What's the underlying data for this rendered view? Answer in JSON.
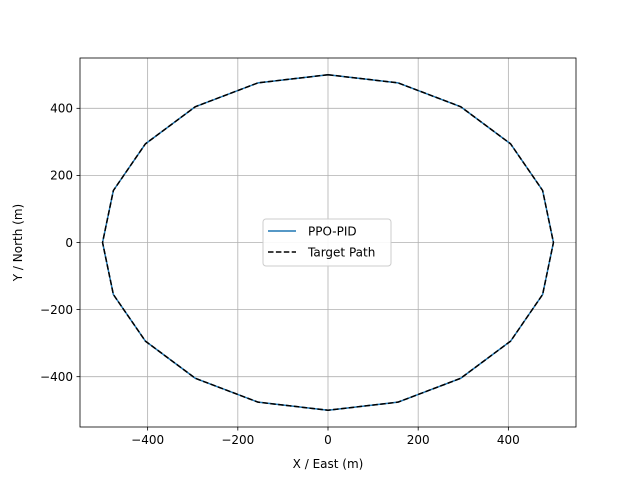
{
  "chart_data": {
    "type": "line",
    "title": "",
    "xlabel": "X / East (m)",
    "ylabel": "Y / North (m)",
    "xlim": [
      -550,
      550
    ],
    "ylim": [
      -550,
      550
    ],
    "xticks": [
      -400,
      -200,
      0,
      200,
      400
    ],
    "yticks": [
      -400,
      -200,
      0,
      200,
      400
    ],
    "xtick_labels": [
      "−400",
      "−200",
      "0",
      "200",
      "400"
    ],
    "ytick_labels": [
      "−400",
      "−200",
      "0",
      "200",
      "400"
    ],
    "grid": true,
    "legend_position": "center",
    "series": [
      {
        "name": "PPO-PID",
        "style": "solid",
        "color": "#1f77b4",
        "x": [
          0,
          155,
          294,
          405,
          476,
          500,
          476,
          405,
          294,
          155,
          0,
          -155,
          -294,
          -405,
          -476,
          -500,
          -476,
          -405,
          -294,
          -155,
          0
        ],
        "y": [
          500,
          476,
          405,
          294,
          155,
          0,
          -155,
          -294,
          -405,
          -476,
          -500,
          -476,
          -405,
          -294,
          -155,
          0,
          155,
          294,
          405,
          476,
          500
        ]
      },
      {
        "name": "Target Path",
        "style": "dashed",
        "color": "#000000",
        "x": [
          0,
          155,
          294,
          405,
          476,
          500,
          476,
          405,
          294,
          155,
          0,
          -155,
          -294,
          -405,
          -476,
          -500,
          -476,
          -405,
          -294,
          -155,
          0
        ],
        "y": [
          500,
          476,
          405,
          294,
          155,
          0,
          -155,
          -294,
          -405,
          -476,
          -500,
          -476,
          -405,
          -294,
          -155,
          0,
          155,
          294,
          405,
          476,
          500
        ]
      }
    ]
  }
}
